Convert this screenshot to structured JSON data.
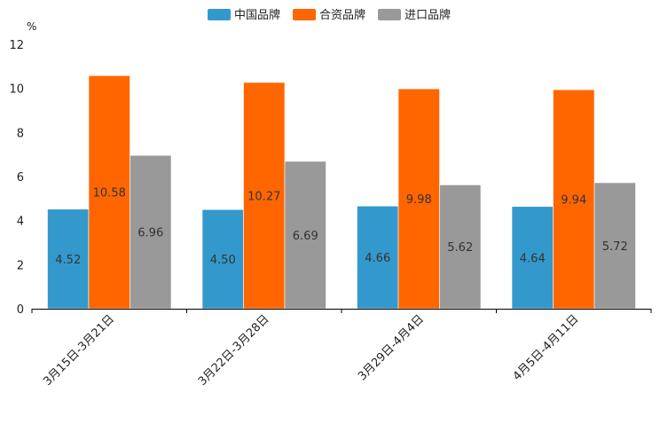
{
  "chart_data": {
    "type": "bar",
    "title": "",
    "xlabel": "",
    "ylabel": "%",
    "ylim": [
      0,
      12
    ],
    "yticks": [
      0,
      2,
      4,
      6,
      8,
      10,
      12
    ],
    "grid": false,
    "legend_position": "top-center",
    "categories": [
      "3月15日-3月21日",
      "3月22日-3月28日",
      "3月29日-4月4日",
      "4月5日-4月11日"
    ],
    "series": [
      {
        "name": "中国品牌",
        "color": "#3399cc",
        "values": [
          4.52,
          4.5,
          4.66,
          4.64
        ],
        "labels": [
          "4.52",
          "4.50",
          "4.66",
          "4.64"
        ]
      },
      {
        "name": "合资品牌",
        "color": "#ff6600",
        "values": [
          10.58,
          10.27,
          9.98,
          9.94
        ],
        "labels": [
          "10.58",
          "10.27",
          "9.98",
          "9.94"
        ]
      },
      {
        "name": "进口品牌",
        "color": "#999999",
        "values": [
          6.96,
          6.69,
          5.62,
          5.72
        ],
        "labels": [
          "6.96",
          "6.69",
          "5.62",
          "5.72"
        ]
      }
    ]
  }
}
